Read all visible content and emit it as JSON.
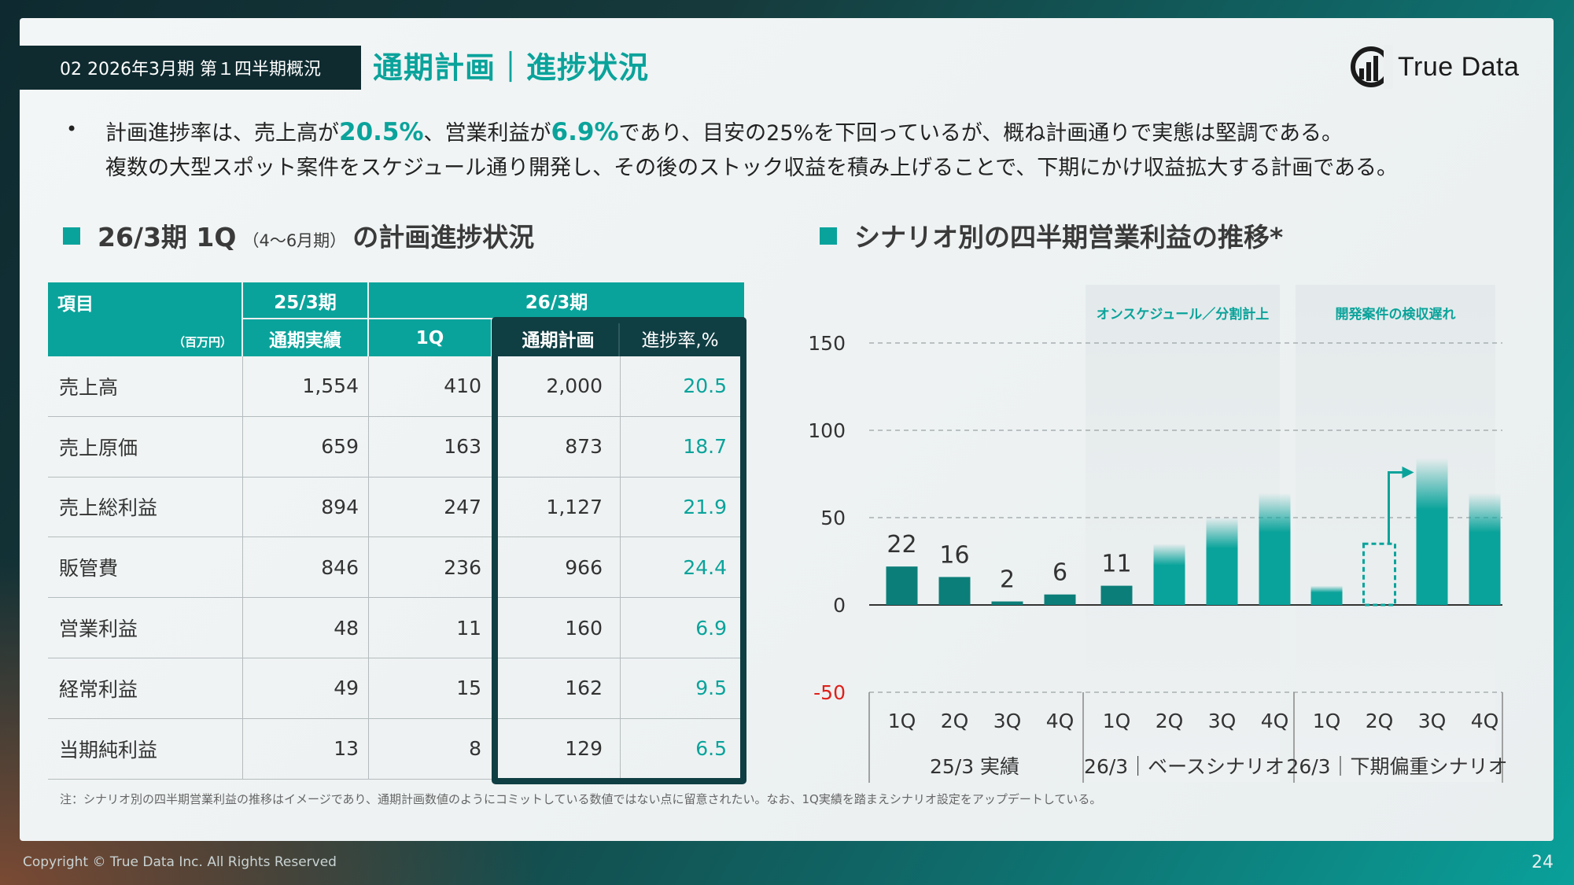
{
  "header": {
    "section_tag": "02 2026年3月期 第１四半期概況",
    "title": "通期計画｜進捗状況",
    "logo_text": "True Data"
  },
  "bullet": {
    "line1_a": "計画進捗率は、売上高が",
    "line1_b": "20.5%",
    "line1_c": "、営業利益が",
    "line1_d": "6.9%",
    "line1_e": "であり、目安の25%を下回っているが、概ね計画通りで実態は堅調である。",
    "line2": "複数の大型スポット案件をスケジュール通り開発し、その後のストック収益を積み上げることで、下期にかけ収益拡大する計画である。"
  },
  "left_section": {
    "title_main": "26/3期 1Q",
    "title_small": "（4～6月期）",
    "title_tail": "の計画進捗状況"
  },
  "right_section": {
    "title": "シナリオ別の四半期営業利益の推移*"
  },
  "table": {
    "h_item": "項目",
    "h_unit": "（百万円）",
    "h_prev": "25/3期",
    "h_curr": "26/3期",
    "h_prev_actual": "通期実績",
    "h_q1": "1Q",
    "h_plan": "通期計画",
    "h_rate": "進捗率,%",
    "rows": [
      {
        "label": "売上高",
        "prev": "1,554",
        "q1": "410",
        "plan": "2,000",
        "rate": "20.5"
      },
      {
        "label": "売上原価",
        "prev": "659",
        "q1": "163",
        "plan": "873",
        "rate": "18.7"
      },
      {
        "label": "売上総利益",
        "prev": "894",
        "q1": "247",
        "plan": "1,127",
        "rate": "21.9"
      },
      {
        "label": "販管費",
        "prev": "846",
        "q1": "236",
        "plan": "966",
        "rate": "24.4"
      },
      {
        "label": "営業利益",
        "prev": "48",
        "q1": "11",
        "plan": "160",
        "rate": "6.9"
      },
      {
        "label": "経常利益",
        "prev": "49",
        "q1": "15",
        "plan": "162",
        "rate": "9.5"
      },
      {
        "label": "当期純利益",
        "prev": "13",
        "q1": "8",
        "plan": "129",
        "rate": "6.5"
      }
    ]
  },
  "chart_data": {
    "type": "bar",
    "ylim": [
      -50,
      150
    ],
    "yticks": [
      -50,
      0,
      50,
      100,
      150
    ],
    "grid": true,
    "groups": [
      {
        "label": "25/3 実績",
        "header": "",
        "categories": [
          "1Q",
          "2Q",
          "3Q",
          "4Q"
        ],
        "values": [
          22,
          16,
          2,
          6
        ],
        "labels": [
          "22",
          "16",
          "2",
          "6"
        ],
        "style": "solid"
      },
      {
        "label": "26/3｜ベースシナリオ",
        "header": "オンスケジュール／分割計上",
        "categories": [
          "1Q",
          "2Q",
          "3Q",
          "4Q"
        ],
        "values": [
          11,
          35,
          50,
          64
        ],
        "labels": [
          "11",
          "",
          "",
          ""
        ],
        "style": "mixed"
      },
      {
        "label": "26/3｜下期偏重シナリオ",
        "header": "開発案件の検収遅れ",
        "categories": [
          "1Q",
          "2Q",
          "3Q",
          "4Q"
        ],
        "values": [
          11,
          35,
          84,
          64
        ],
        "labels": [
          "",
          "",
          "",
          ""
        ],
        "style": "shifted"
      }
    ]
  },
  "footer": {
    "note": "注：シナリオ別の四半期営業利益の推移はイメージであり、通期計画数値のようにコミットしている数値ではない点に留意されたい。なお、1Q実績を踏まえシナリオ設定をアップデートしている。",
    "copyright": "Copyright © True Data Inc. All Rights Reserved",
    "page_number": "24"
  },
  "colors": {
    "accent": "#0aa39b",
    "dark": "#0f3e43",
    "negative": "#e0201a"
  }
}
